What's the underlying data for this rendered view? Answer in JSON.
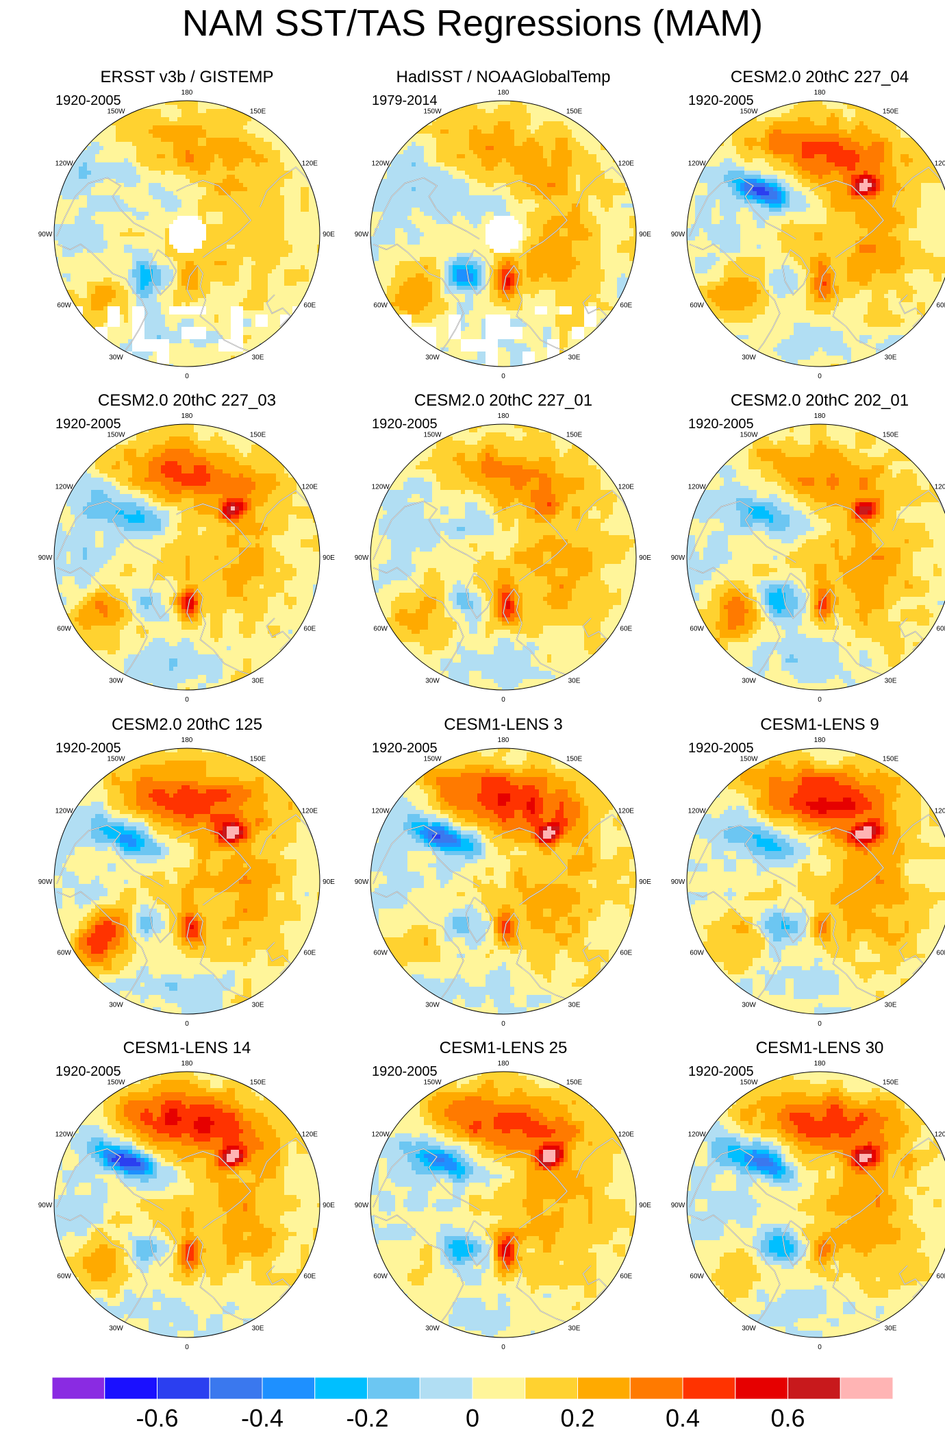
{
  "title": "NAM SST/TAS Regressions (MAM)",
  "longitude_labels": [
    "180",
    "150E",
    "120E",
    "90E",
    "60E",
    "30E",
    "0",
    "30W",
    "60W",
    "90W",
    "120W",
    "150W"
  ],
  "panels": [
    {
      "title": "ERSST v3b / GISTEMP",
      "period": "1920-2005",
      "pac": 0.22,
      "eur": 0.1,
      "atl": 0.2,
      "lab": -0.4,
      "cna": 0.15,
      "scand": 0.2,
      "eas": 0.1,
      "ebar": -0.1,
      "arctic": 0.1,
      "missing": true
    },
    {
      "title": "HadISST / NOAAGlobalTemp",
      "period": "1979-2014",
      "pac": 0.22,
      "eur": 0.15,
      "atl": 0.3,
      "lab": -0.45,
      "cna": 0.15,
      "scand": 0.5,
      "eas": 0.1,
      "ebar": -0.1,
      "arctic": 0.05,
      "missing": true
    },
    {
      "title": "CESM2.0 20thC 227_04",
      "period": "1920-2005",
      "pac": 0.38,
      "eur": 0.2,
      "atl": 0.25,
      "lab": -0.15,
      "cna": -0.4,
      "scand": 0.3,
      "eas": 0.58,
      "ebar": -0.1,
      "arctic": 0.1,
      "missing": false
    },
    {
      "title": "CESM2.0 20thC 227_03",
      "period": "1920-2005",
      "pac": 0.35,
      "eur": 0.15,
      "atl": 0.3,
      "lab": -0.25,
      "cna": -0.15,
      "scand": 0.45,
      "eas": 0.45,
      "ebar": -0.1,
      "arctic": 0.1,
      "missing": false
    },
    {
      "title": "CESM2.0 20thC 227_01",
      "period": "1920-2005",
      "pac": 0.28,
      "eur": 0.2,
      "atl": 0.25,
      "lab": -0.25,
      "cna": 0.1,
      "scand": 0.45,
      "eas": 0.2,
      "ebar": -0.1,
      "arctic": 0.1,
      "missing": false
    },
    {
      "title": "CESM2.0 20thC 202_01",
      "period": "1920-2005",
      "pac": 0.25,
      "eur": 0.2,
      "atl": 0.35,
      "lab": -0.45,
      "cna": -0.15,
      "scand": 0.4,
      "eas": 0.45,
      "ebar": -0.1,
      "arctic": 0.1,
      "missing": false
    },
    {
      "title": "CESM2.0 20thC 125",
      "period": "1920-2005",
      "pac": 0.42,
      "eur": 0.2,
      "atl": 0.45,
      "lab": -0.3,
      "cna": -0.25,
      "scand": 0.45,
      "eas": 0.62,
      "ebar": -0.1,
      "arctic": 0.1,
      "missing": false
    },
    {
      "title": "CESM1-LENS 3",
      "period": "1920-2005",
      "pac": 0.45,
      "eur": 0.2,
      "atl": 0.15,
      "lab": -0.25,
      "cna": -0.45,
      "scand": 0.35,
      "eas": 0.55,
      "ebar": -0.1,
      "arctic": 0.1,
      "missing": false
    },
    {
      "title": "CESM1-LENS 9",
      "period": "1920-2005",
      "pac": 0.45,
      "eur": 0.22,
      "atl": 0.2,
      "lab": -0.3,
      "cna": -0.15,
      "scand": 0.2,
      "eas": 0.62,
      "ebar": -0.1,
      "arctic": 0.1,
      "missing": false
    },
    {
      "title": "CESM1-LENS 14",
      "period": "1920-2005",
      "pac": 0.45,
      "eur": 0.2,
      "atl": 0.28,
      "lab": -0.3,
      "cna": -0.5,
      "scand": 0.35,
      "eas": 0.55,
      "ebar": -0.1,
      "arctic": 0.1,
      "missing": false
    },
    {
      "title": "CESM1-LENS 25",
      "period": "1920-2005",
      "pac": 0.4,
      "eur": 0.18,
      "atl": 0.12,
      "lab": -0.35,
      "cna": -0.3,
      "scand": 0.45,
      "eas": 0.6,
      "ebar": -0.1,
      "arctic": 0.1,
      "missing": false
    },
    {
      "title": "CESM1-LENS 30",
      "period": "1920-2005",
      "pac": 0.4,
      "eur": 0.22,
      "atl": 0.15,
      "lab": -0.35,
      "cna": -0.35,
      "scand": 0.2,
      "eas": 0.48,
      "ebar": -0.1,
      "arctic": 0.1,
      "missing": false
    }
  ],
  "colorbar": {
    "colors": [
      "#8a2be2",
      "#1a10ff",
      "#2b3ff0",
      "#3a78ee",
      "#1e90ff",
      "#00bfff",
      "#6cc6f2",
      "#b1def3",
      "#fff59a",
      "#ffd230",
      "#ffaa00",
      "#ff7a00",
      "#ff3300",
      "#e60000",
      "#c8191c",
      "#ffb4b4"
    ],
    "bounds": [
      -0.7,
      -0.6,
      -0.5,
      -0.4,
      -0.3,
      -0.2,
      -0.1,
      0,
      0.1,
      0.2,
      0.3,
      0.4,
      0.5,
      0.6,
      0.7
    ],
    "tick_values": [
      -0.6,
      -0.4,
      -0.2,
      0,
      0.2,
      0.4,
      0.6
    ],
    "tick_labels": [
      "-0.6",
      "-0.4",
      "-0.2",
      "0",
      "0.2",
      "0.4",
      "0.6"
    ]
  },
  "chart_data": {
    "type": "heatmap",
    "title": "NAM SST/TAS Regressions (MAM)",
    "projection": "north polar stereographic",
    "panels": [
      "ERSST v3b / GISTEMP",
      "HadISST / NOAAGlobalTemp",
      "CESM2.0 20thC 227_04",
      "CESM2.0 20thC 227_03",
      "CESM2.0 20thC 227_01",
      "CESM2.0 20thC 202_01",
      "CESM2.0 20thC 125",
      "CESM1-LENS 3",
      "CESM1-LENS 9",
      "CESM1-LENS 14",
      "CESM1-LENS 25",
      "CESM1-LENS 30"
    ],
    "colorbar_range": [
      -0.7,
      0.7
    ],
    "colorbar_ticks": [
      -0.6,
      -0.4,
      -0.2,
      0,
      0.2,
      0.4,
      0.6
    ]
  }
}
